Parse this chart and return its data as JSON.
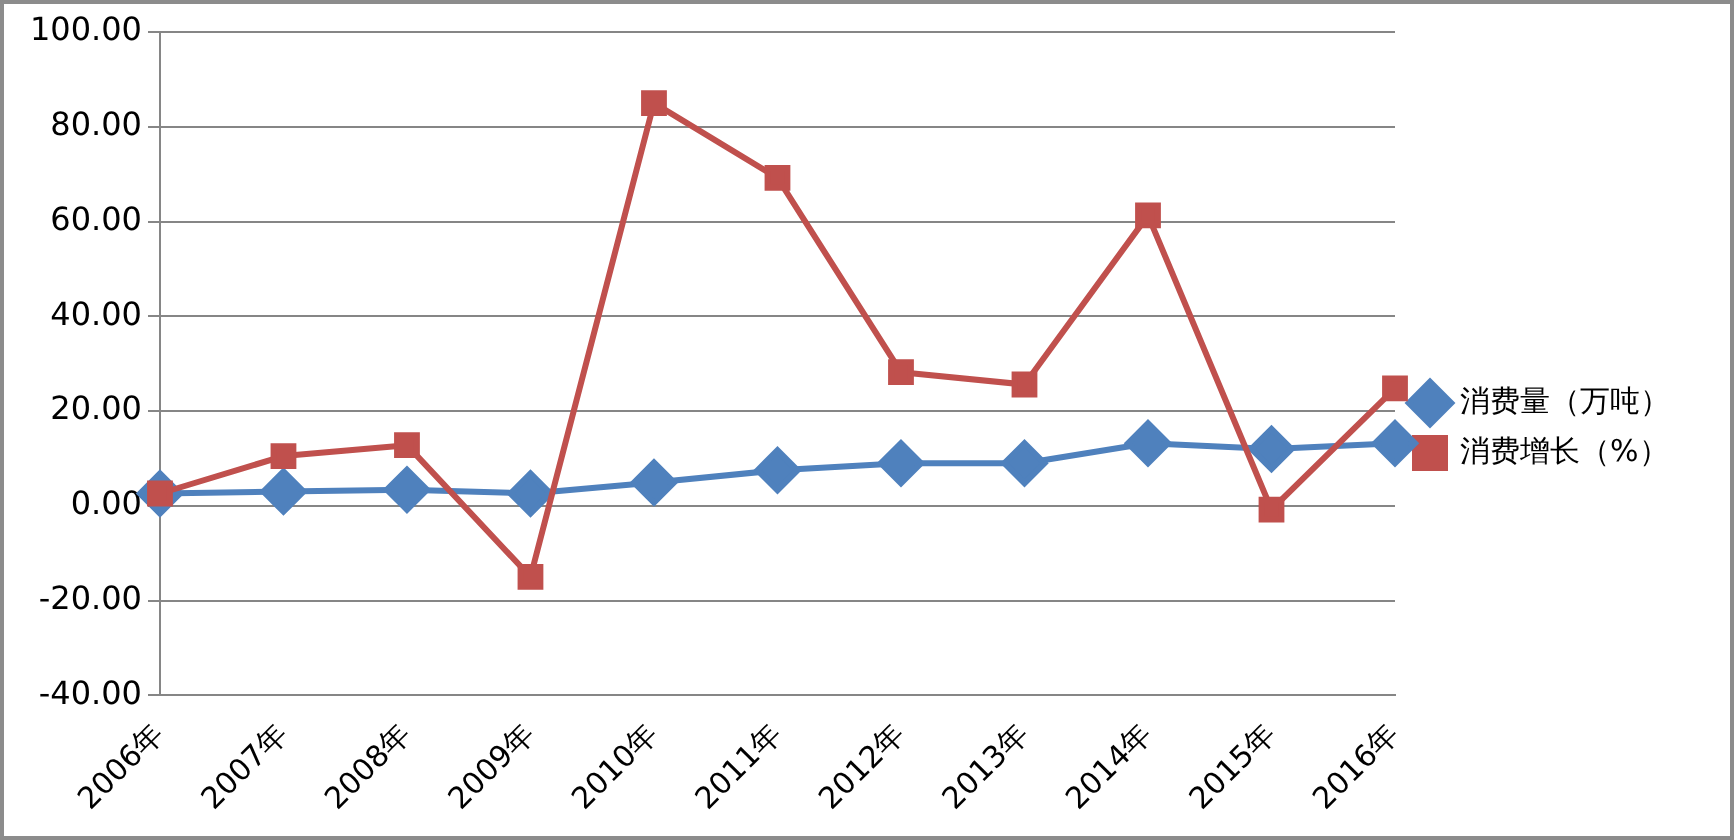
{
  "chart_data": {
    "type": "line",
    "categories": [
      "2006年",
      "2007年",
      "2008年",
      "2009年",
      "2010年",
      "2011年",
      "2012年",
      "2013年",
      "2014年",
      "2015年",
      "2016年"
    ],
    "series": [
      {
        "name": "消费增长（%）",
        "color": "#c0504d",
        "marker": "square",
        "values": [
          2.6,
          10.5,
          12.8,
          -15.0,
          85.0,
          69.2,
          28.2,
          25.6,
          61.3,
          -0.8,
          24.8
        ]
      },
      {
        "name": "消费量（万吨）",
        "color": "#4f81bd",
        "marker": "diamond",
        "values": [
          2.6,
          3.0,
          3.4,
          2.6,
          4.9,
          7.5,
          9.0,
          9.0,
          13.2,
          12.0,
          13.2
        ]
      }
    ],
    "ylim": [
      -40,
      100
    ],
    "yticks": [
      {
        "value": -40,
        "label": "-40.00"
      },
      {
        "value": -20,
        "label": "-20.00"
      },
      {
        "value": 0,
        "label": "0.00"
      },
      {
        "value": 20,
        "label": "20.00"
      },
      {
        "value": 40,
        "label": "40.00"
      },
      {
        "value": 60,
        "label": "60.00"
      },
      {
        "value": 80,
        "label": "80.00"
      },
      {
        "value": 100,
        "label": "100.00"
      }
    ],
    "grid": "y",
    "legend": "right",
    "line_style": "solid"
  }
}
